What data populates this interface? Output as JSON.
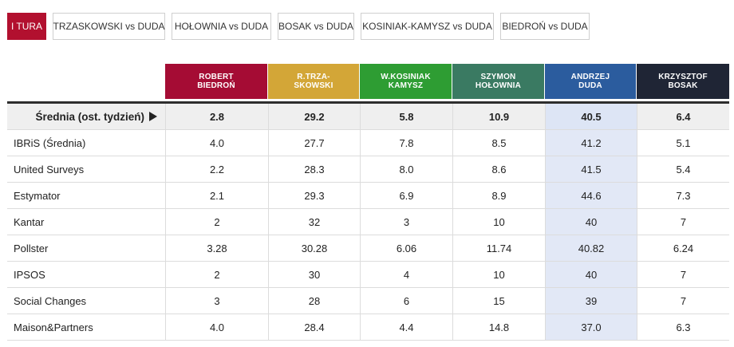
{
  "tabs": [
    {
      "label": "I TURA",
      "active": true
    },
    {
      "label": "TRZASKOWSKI vs DUDA",
      "active": false
    },
    {
      "label": "HOŁOWNIA vs DUDA",
      "active": false
    },
    {
      "label": "BOSAK vs DUDA",
      "active": false
    },
    {
      "label": "KOSINIAK-KAMYSZ vs DUDA",
      "active": false
    },
    {
      "label": "BIEDROŃ vs DUDA",
      "active": false
    }
  ],
  "candidates": [
    {
      "label": "ROBERT BIEDROŃ",
      "color": "#a50c34"
    },
    {
      "label": "R.TRZA-SKOWSKI",
      "color": "#d3a637"
    },
    {
      "label": "W.KOSINIAK KAMYSZ",
      "color": "#2e9d33"
    },
    {
      "label": "SZYMON HOŁOWNIA",
      "color": "#3a7a62"
    },
    {
      "label": "ANDRZEJ DUDA",
      "color": "#2b5c9e"
    },
    {
      "label": "KRZYSZTOF BOSAK",
      "color": "#1f2535"
    }
  ],
  "average": {
    "label": "Średnia (ost. tydzień)",
    "values": [
      "2.8",
      "29.2",
      "5.8",
      "10.9",
      "40.5",
      "6.4"
    ]
  },
  "polls": [
    {
      "name": "IBRiS (Średnia)",
      "values": [
        "4.0",
        "27.7",
        "7.8",
        "8.5",
        "41.2",
        "5.1"
      ]
    },
    {
      "name": "United Surveys",
      "values": [
        "2.2",
        "28.3",
        "8.0",
        "8.6",
        "41.5",
        "5.4"
      ]
    },
    {
      "name": "Estymator",
      "values": [
        "2.1",
        "29.3",
        "6.9",
        "8.9",
        "44.6",
        "7.3"
      ]
    },
    {
      "name": "Kantar",
      "values": [
        "2",
        "32",
        "3",
        "10",
        "40",
        "7"
      ]
    },
    {
      "name": "Pollster",
      "values": [
        "3.28",
        "30.28",
        "6.06",
        "11.74",
        "40.82",
        "6.24"
      ]
    },
    {
      "name": "IPSOS",
      "values": [
        "2",
        "30",
        "4",
        "10",
        "40",
        "7"
      ]
    },
    {
      "name": "Social Changes",
      "values": [
        "3",
        "28",
        "6",
        "15",
        "39",
        "7"
      ]
    },
    {
      "name": "Maison&Partners",
      "values": [
        "4.0",
        "28.4",
        "4.4",
        "14.8",
        "37.0",
        "6.3"
      ]
    }
  ]
}
